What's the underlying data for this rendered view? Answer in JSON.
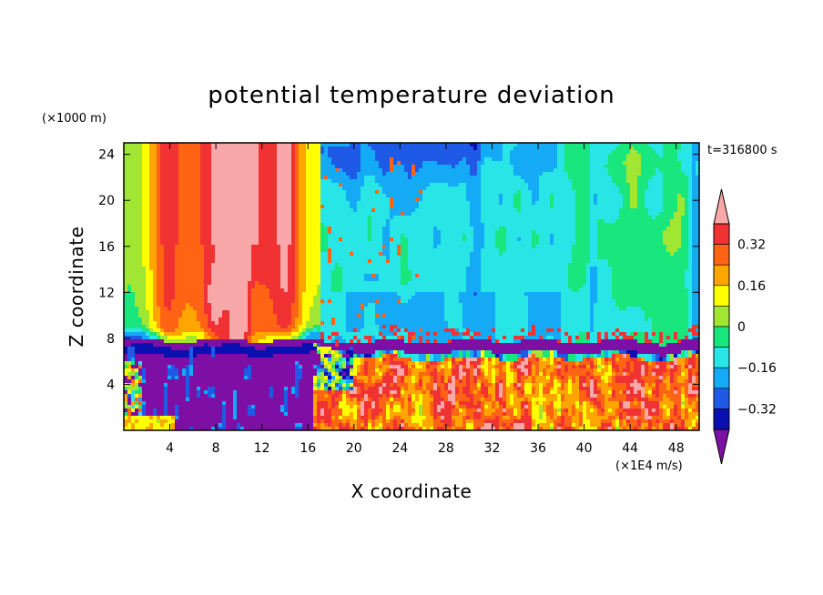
{
  "chart_data": {
    "type": "heatmap",
    "title": "potential temperature deviation",
    "xlabel": "X coordinate",
    "ylabel": "Z coordinate",
    "x_units": "(×1E4 m/s)",
    "y_units": "(×1000 m)",
    "time_label": "t=316800 s",
    "xlim": [
      0,
      50
    ],
    "ylim": [
      0,
      25
    ],
    "x_ticks": [
      4,
      8,
      12,
      16,
      20,
      24,
      28,
      32,
      36,
      40,
      44,
      48
    ],
    "y_ticks": [
      4,
      8,
      12,
      16,
      20,
      24
    ],
    "colorbar": {
      "levels": [
        -0.4,
        -0.32,
        -0.24,
        -0.16,
        -0.08,
        0,
        0.08,
        0.16,
        0.24,
        0.32,
        0.4
      ],
      "labeled_levels": [
        -0.32,
        -0.16,
        0,
        0.16,
        0.32
      ],
      "tick_labels": [
        "−0.32",
        "−0.16",
        "0",
        "0.16",
        "0.32"
      ],
      "colors": [
        "#7d0fa5",
        "#0a0faf",
        "#1e5ae6",
        "#14aaf5",
        "#28e6e6",
        "#19e67d",
        "#a0e632",
        "#ffff00",
        "#ffa500",
        "#ff6414",
        "#f03232",
        "#f8a8a8"
      ],
      "extend": "both"
    },
    "fields": {
      "boundary_layer_top_z": 7.5,
      "upper_warm_plume_x": [
        4,
        15
      ],
      "upper_warm_core_x": [
        6,
        13
      ],
      "lower_cold_region_x": [
        0,
        17
      ],
      "lower_turbulent_warm_region_x": [
        17,
        50
      ],
      "upper_cold_region_x": [
        17,
        38
      ],
      "right_mixed_region_x": [
        38,
        50
      ]
    }
  }
}
